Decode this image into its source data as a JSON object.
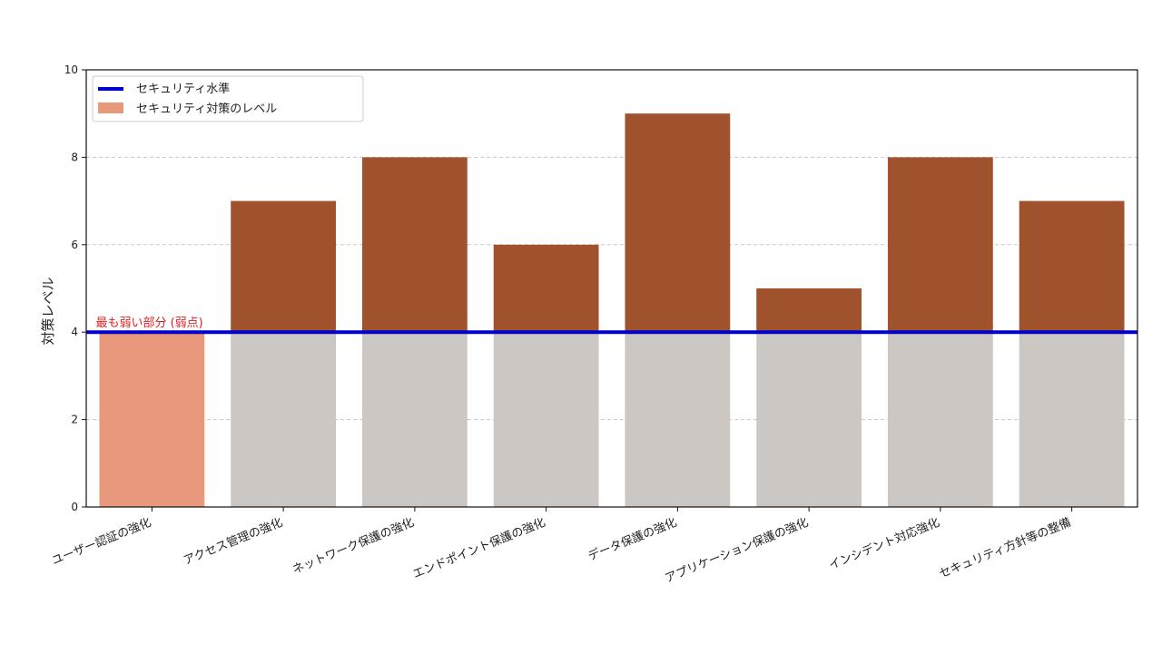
{
  "chart_data": {
    "type": "bar",
    "title": "",
    "xlabel": "",
    "ylabel": "対策レベル",
    "ylim": [
      0,
      10
    ],
    "yticks": [
      0,
      2,
      4,
      6,
      8,
      10
    ],
    "grid": "y-dashed",
    "legend_position": "top-left",
    "categories": [
      "ユーザー認証の強化",
      "アクセス管理の強化",
      "ネットワーク保護の強化",
      "エンドポイント保護の強化",
      "データ保護の強化",
      "アプリケーション保護の強化",
      "インシデント対応強化",
      "セキュリティ方針等の整備"
    ],
    "series": [
      {
        "name": "セキュリティ対策のレベル",
        "values": [
          4,
          7,
          8,
          6,
          9,
          5,
          8,
          7
        ]
      }
    ],
    "threshold": {
      "name": "セキュリティ水準",
      "value": 4
    },
    "annotation": {
      "text": "最も弱い部分 (弱点)",
      "category_index": 0
    },
    "colors": {
      "weakest": "#e8997b",
      "below_threshold": "#cdc7c4",
      "above_threshold": "#a0522d",
      "threshold_line": "#0000cc",
      "annotation": "#e02020"
    }
  }
}
